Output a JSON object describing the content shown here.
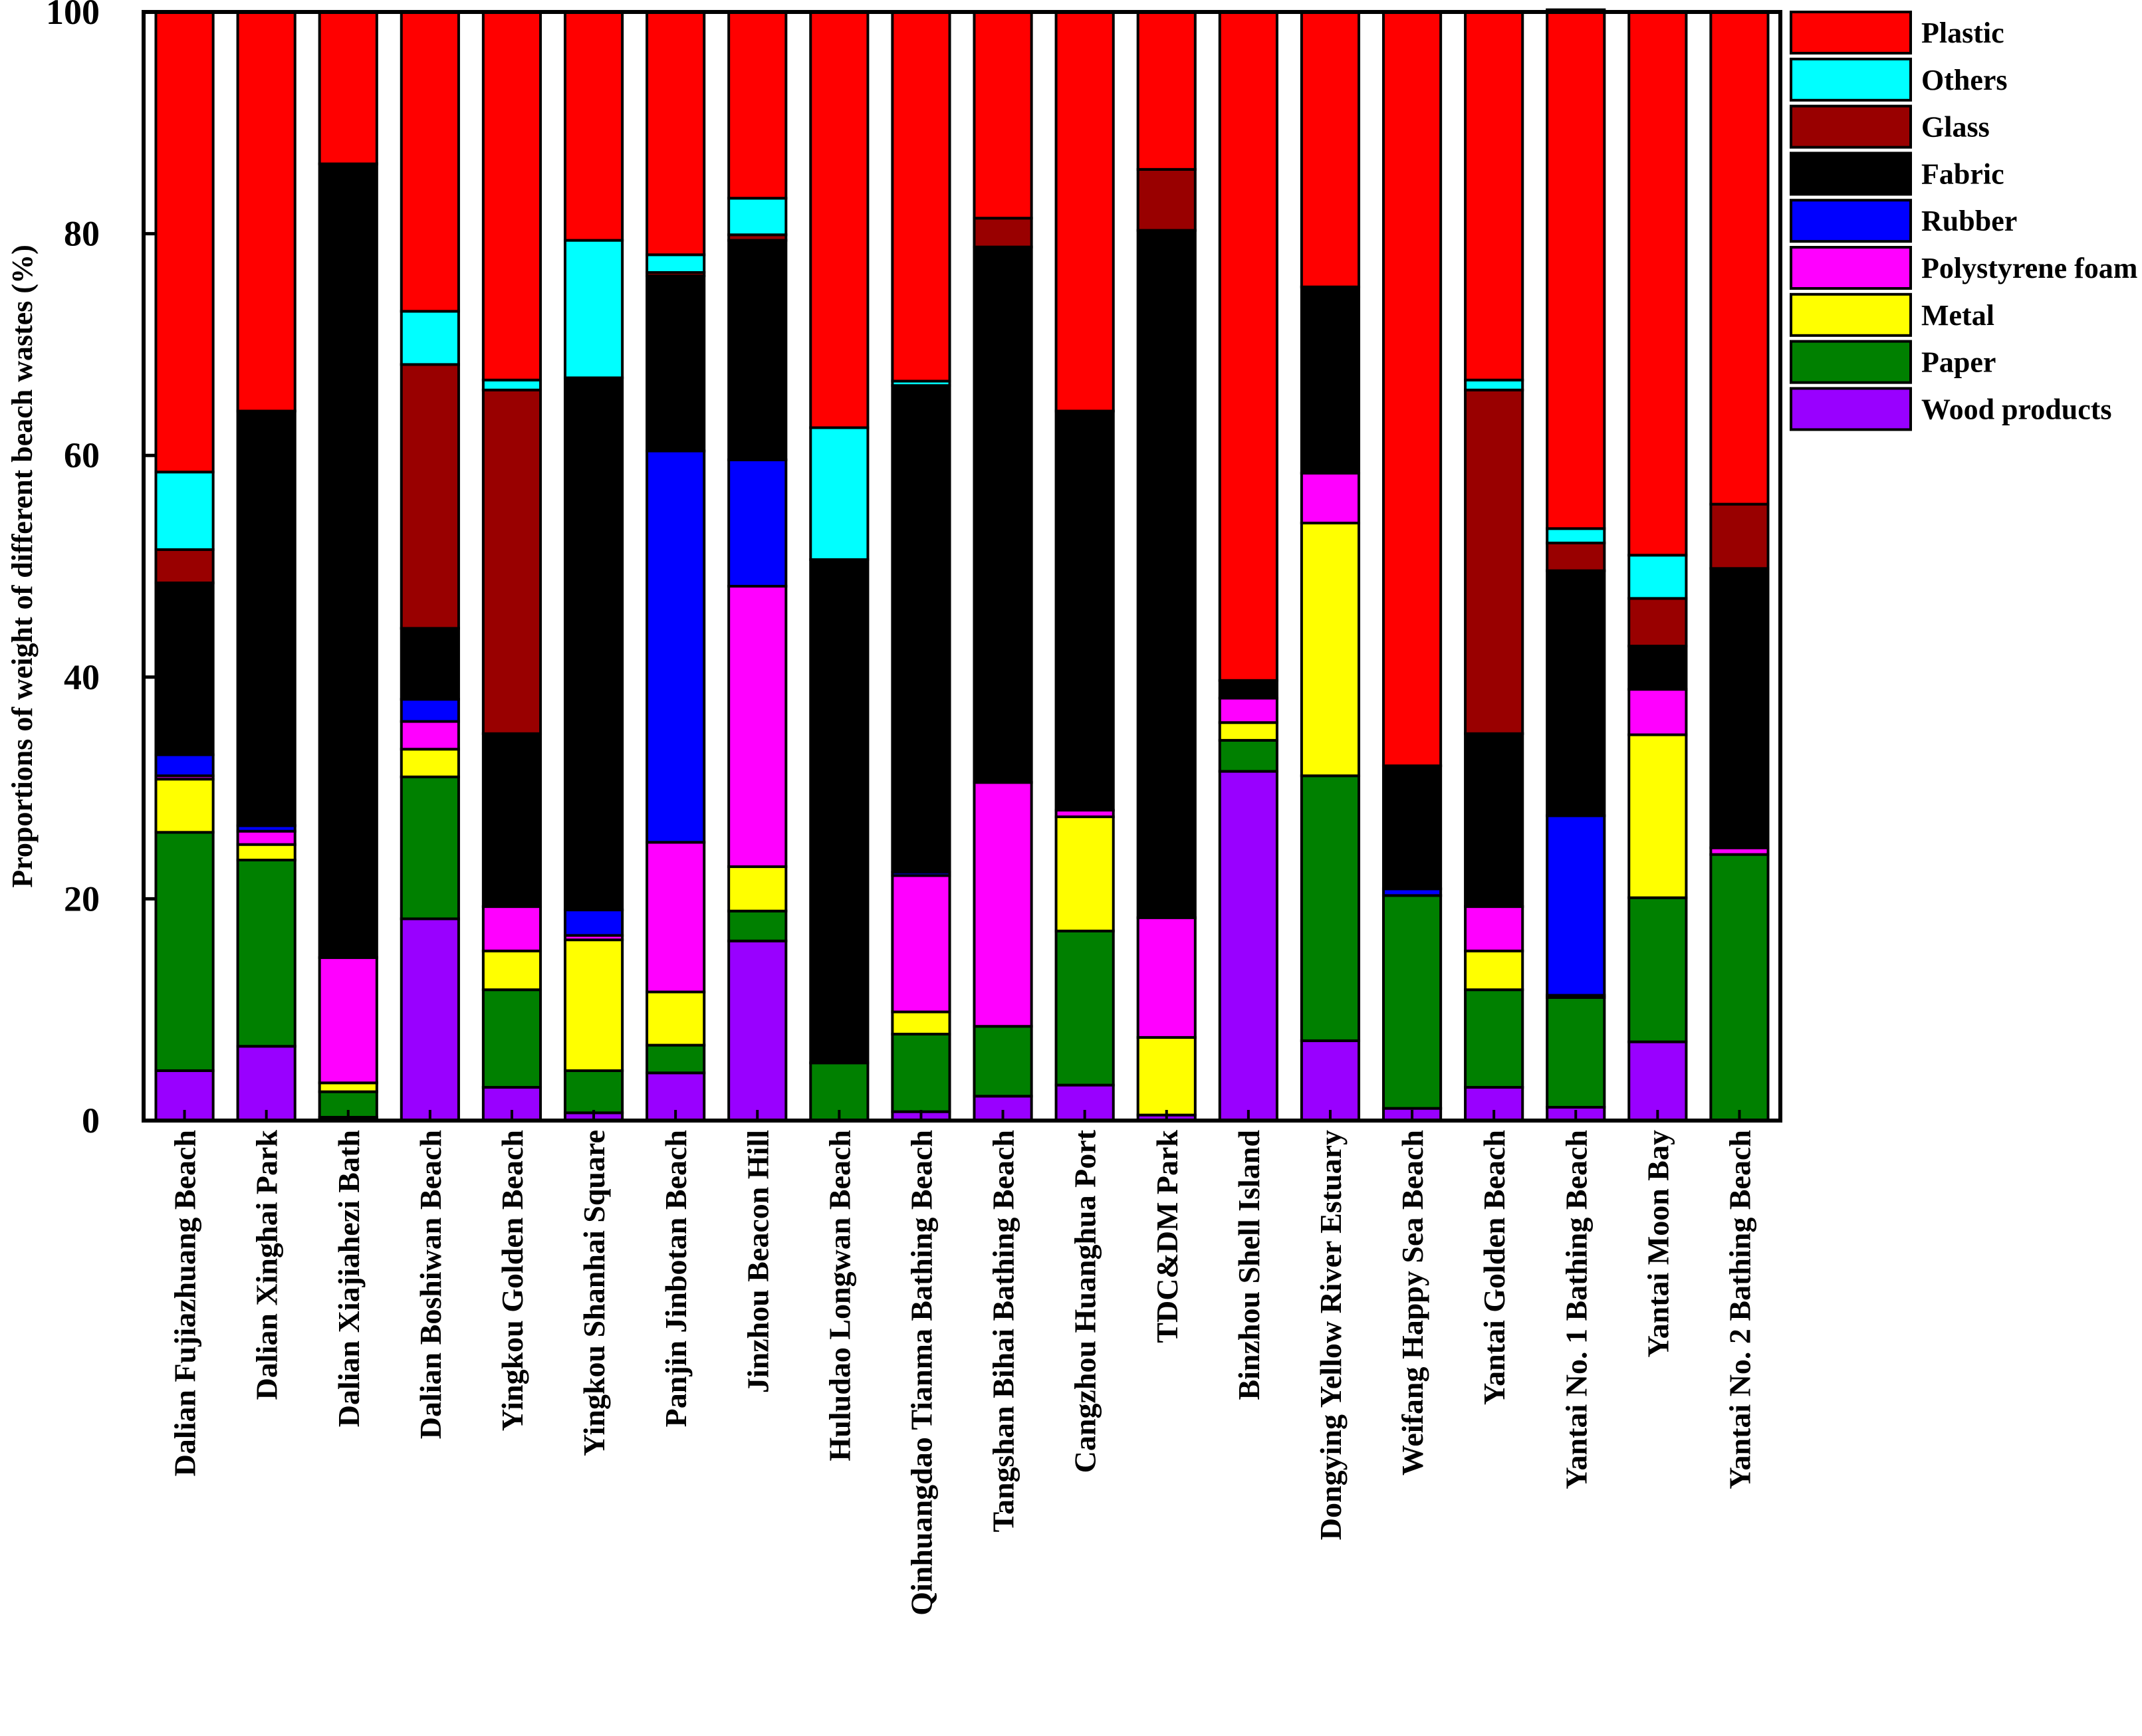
{
  "chart_data": {
    "type": "bar",
    "stacked": true,
    "title": "",
    "xlabel": "",
    "ylabel": "Proportions of weight of different beach wastes (%)",
    "ylim": [
      0,
      100
    ],
    "yticks": [
      0,
      20,
      40,
      60,
      80,
      100
    ],
    "legend_position": "right",
    "categories": [
      "Dalian Fujiazhuang Beach",
      "Dalian Xinghai Park",
      "Dalian Xiajiahezi Bath",
      "Dalian Boshiwan Beach",
      "Yingkou Golden Beach",
      "Yingkou Shanhai Square",
      "Panjin Jinbotan Beach",
      "Jinzhou Beacon Hill",
      "Huludao Longwan Beach",
      "Qinhuangdao Tianma Bathing Beach",
      "Tangshan Bihai Bathing Beach",
      "Cangzhou Huanghua Port",
      "TDC&DM Park",
      "Binzhou Shell Island",
      "Dongying Yellow River Estuary",
      "Weifang Happy Sea Beach",
      "Yantai Golden Beach",
      "Yantai No. 1 Bathing Beach",
      "Yantai Moon Bay",
      "Yantai No. 2 Bathing Beach"
    ],
    "series": [
      {
        "name": "Wood products",
        "color": "#9900ff",
        "values": [
          4.5,
          6.7,
          0.3,
          18.2,
          3.0,
          0.7,
          4.3,
          16.2,
          0,
          0.8,
          2.2,
          3.2,
          0.5,
          31.5,
          7.2,
          1.1,
          3.0,
          1.2,
          7.1,
          0
        ]
      },
      {
        "name": "Paper",
        "color": "#008000",
        "values": [
          21.5,
          16.8,
          2.3,
          12.8,
          8.8,
          3.8,
          2.5,
          2.7,
          5.2,
          7.0,
          6.3,
          13.9,
          0,
          2.8,
          23.9,
          19.2,
          8.8,
          9.9,
          13.0,
          24.0
        ]
      },
      {
        "name": "Metal",
        "color": "#ffff00",
        "values": [
          4.8,
          1.4,
          0.8,
          2.5,
          3.5,
          11.8,
          4.8,
          4.0,
          0,
          2.0,
          0,
          10.3,
          7.0,
          1.6,
          22.8,
          0,
          3.5,
          0,
          14.7,
          0
        ]
      },
      {
        "name": "Polystyrene foam",
        "color": "#ff00ff",
        "values": [
          0.3,
          1.2,
          11.3,
          2.5,
          4.0,
          0.4,
          13.5,
          25.3,
          0,
          12.3,
          22.0,
          0.6,
          10.8,
          2.2,
          4.5,
          0,
          4.0,
          0.2,
          4.1,
          0.6
        ]
      },
      {
        "name": "Rubber",
        "color": "#0000ff",
        "values": [
          1.9,
          0.5,
          0,
          2.0,
          0,
          2.3,
          35.3,
          11.4,
          0,
          0.3,
          0,
          0,
          0,
          0,
          0,
          0.6,
          0,
          16.2,
          0,
          0
        ]
      },
      {
        "name": "Fabric",
        "color": "#000000",
        "values": [
          15.5,
          37.4,
          71.6,
          6.4,
          15.6,
          48.0,
          15.8,
          19.8,
          45.4,
          43.9,
          48.3,
          36.0,
          62.0,
          1.6,
          16.8,
          11.1,
          15.6,
          22.1,
          3.9,
          25.2
        ]
      },
      {
        "name": "Glass",
        "color": "#990000",
        "values": [
          3.0,
          0,
          0,
          23.8,
          31.0,
          0,
          0.3,
          0.5,
          0,
          0,
          2.6,
          0,
          5.5,
          0,
          0,
          0,
          31.0,
          2.5,
          4.3,
          5.8
        ]
      },
      {
        "name": "Others",
        "color": "#00ffff",
        "values": [
          7.0,
          0,
          0,
          4.8,
          0.9,
          12.4,
          1.6,
          3.3,
          11.9,
          0.4,
          0,
          0,
          0,
          0,
          0,
          0,
          0.9,
          1.3,
          3.9,
          0
        ]
      },
      {
        "name": "Plastic",
        "color": "#ff0000",
        "values": [
          41.5,
          36.0,
          13.7,
          27.0,
          33.2,
          20.6,
          21.9,
          16.8,
          37.5,
          33.3,
          18.6,
          36.0,
          14.2,
          60.3,
          24.8,
          68.0,
          33.2,
          46.8,
          49.0,
          44.4
        ]
      }
    ]
  }
}
